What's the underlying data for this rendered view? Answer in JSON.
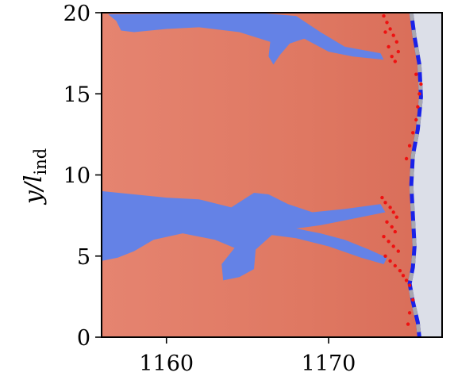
{
  "chart_data": {
    "type": "heatmap",
    "title": "",
    "xlabel": "",
    "ylabel_main": "y/l",
    "ylabel_sub": "ind",
    "xlim": [
      1156,
      1177
    ],
    "ylim": [
      0,
      20
    ],
    "x_ticks": [
      1160,
      1170
    ],
    "y_ticks": [
      0,
      5,
      10,
      15,
      20
    ],
    "grid": false,
    "legend": "none",
    "colors": {
      "field": "#e07a66",
      "field_dark": "#c9604e",
      "cold_region": "#6482e6",
      "unburnt": "#dcdfe8",
      "front_line": "#1a22e8",
      "front_dash": "#a8a8b0",
      "particles": "#ee1111"
    },
    "blue_regions": [
      {
        "name": "upper-plume",
        "points": [
          [
            1156.4,
            19.9
          ],
          [
            1165.5,
            20
          ],
          [
            1168,
            19.8
          ],
          [
            1169.5,
            18.8
          ],
          [
            1171,
            17.9
          ],
          [
            1173.2,
            17.5
          ],
          [
            1173.4,
            17.1
          ],
          [
            1171.5,
            17.3
          ],
          [
            1170,
            17.6
          ],
          [
            1168.5,
            18.4
          ],
          [
            1167.6,
            18.1
          ],
          [
            1167,
            17.4
          ],
          [
            1166.6,
            16.8
          ],
          [
            1166.3,
            17.3
          ],
          [
            1166.4,
            18.2
          ],
          [
            1164.5,
            18.8
          ],
          [
            1162,
            19.1
          ],
          [
            1160,
            19
          ],
          [
            1158,
            18.8
          ],
          [
            1157.2,
            18.9
          ],
          [
            1156.9,
            19.5
          ]
        ]
      },
      {
        "name": "middle-band",
        "points": [
          [
            1156,
            9
          ],
          [
            1158,
            8.8
          ],
          [
            1160,
            8.6
          ],
          [
            1162,
            8.5
          ],
          [
            1164,
            8
          ],
          [
            1165.4,
            8.9
          ],
          [
            1166.3,
            8.8
          ],
          [
            1167.5,
            8.2
          ],
          [
            1169,
            7.7
          ],
          [
            1171,
            7.9
          ],
          [
            1173.2,
            8.2
          ],
          [
            1173.5,
            7.7
          ],
          [
            1171.5,
            7.3
          ],
          [
            1169.5,
            6.9
          ],
          [
            1168,
            6.7
          ],
          [
            1169.5,
            6.4
          ],
          [
            1171,
            6.0
          ],
          [
            1172.5,
            5.4
          ],
          [
            1173.6,
            4.9
          ],
          [
            1173.4,
            4.5
          ],
          [
            1172,
            4.9
          ],
          [
            1170,
            5.6
          ],
          [
            1168,
            6.1
          ],
          [
            1166.5,
            6.3
          ],
          [
            1165.5,
            5.4
          ],
          [
            1165.4,
            4.2
          ],
          [
            1164.5,
            3.7
          ],
          [
            1163.5,
            3.5
          ],
          [
            1163.4,
            4.5
          ],
          [
            1164.2,
            5.5
          ],
          [
            1163,
            6.0
          ],
          [
            1161,
            6.4
          ],
          [
            1159.2,
            6.0
          ],
          [
            1158,
            5.3
          ],
          [
            1157,
            4.9
          ],
          [
            1156,
            4.7
          ]
        ]
      }
    ],
    "flame_front": {
      "x": [
        1175.1,
        1175.3,
        1175.6,
        1175.7,
        1175.5,
        1175.2,
        1175.1,
        1175.2,
        1175.3,
        1175.2,
        1175.0,
        1175.2,
        1175.5,
        1175.6
      ],
      "y": [
        20,
        18.5,
        16.8,
        14.8,
        12.8,
        11.2,
        9.4,
        7.5,
        5.6,
        4.3,
        3.3,
        2.2,
        0.9,
        0
      ]
    },
    "particles_upper": {
      "x": [
        1173.4,
        1173.6,
        1173.8,
        1174.0,
        1174.2,
        1173.7,
        1173.9,
        1174.1,
        1173.5,
        1174.3
      ],
      "y": [
        19.8,
        19.4,
        19.0,
        18.6,
        18.2,
        17.9,
        17.3,
        17.0,
        18.8,
        17.6
      ]
    },
    "particles_middle": {
      "x": [
        1173.3,
        1173.5,
        1173.8,
        1174.0,
        1174.2,
        1173.6,
        1173.9,
        1174.1,
        1173.4,
        1173.7,
        1174.0,
        1174.3,
        1173.5,
        1173.8,
        1174.1,
        1174.4,
        1174.6,
        1174.8,
        1175.0
      ],
      "y": [
        8.6,
        8.3,
        8.0,
        7.7,
        7.4,
        7.1,
        6.8,
        6.5,
        6.2,
        5.9,
        5.6,
        5.3,
        5.0,
        4.7,
        4.4,
        4.1,
        3.8,
        3.5,
        3.2
      ]
    },
    "particles_lower": {
      "x": [
        1174.8,
        1175.0,
        1175.2,
        1175.4,
        1175.5,
        1175.6,
        1175.7,
        1175.4,
        1175.2,
        1175.0,
        1174.9
      ],
      "y": [
        11.0,
        11.8,
        12.6,
        13.4,
        14.2,
        15.0,
        15.6,
        16.2,
        2.3,
        1.5,
        0.8
      ]
    }
  }
}
